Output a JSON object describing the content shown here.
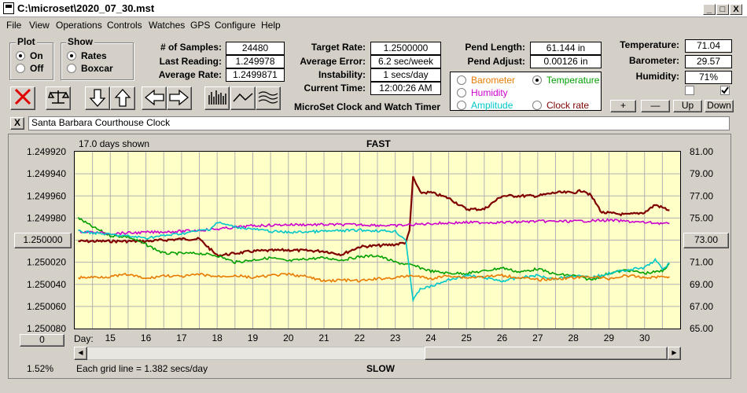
{
  "window": {
    "title": "C:\\microset\\2020_07_30.mst",
    "controls": {
      "minimize": "_",
      "maximize": "□",
      "close": "X"
    }
  },
  "menu": [
    "File",
    "View",
    "Operations",
    "Controls",
    "Watches",
    "GPS",
    "Configure",
    "Help"
  ],
  "plot_group": {
    "title": "Plot",
    "on": "On",
    "off": "Off",
    "selected": "On"
  },
  "show_group": {
    "title": "Show",
    "rates": "Rates",
    "boxcar": "Boxcar",
    "selected": "Rates"
  },
  "stats": {
    "samples_label": "# of Samples:",
    "samples": "24480",
    "last_label": "Last Reading:",
    "last": "1.249978",
    "avg_label": "Average Rate:",
    "avg": "1.2499871",
    "target_label": "Target Rate:",
    "target": "1.2500000",
    "avgerr_label": "Average Error:",
    "avgerr": "6.2 sec/week",
    "instab_label": "Instability:",
    "instab": "1 secs/day",
    "time_label": "Current Time:",
    "time": "12:00:26 AM",
    "pendlen_label": "Pend Length:",
    "pendlen": "61.144 in",
    "pendadj_label": "Pend Adjust:",
    "pendadj": "0.00126 in",
    "temp_label": "Temperature:",
    "temp": "71.04",
    "baro_label": "Barometer:",
    "baro": "29.57",
    "hum_label": "Humidity:",
    "hum": "71%"
  },
  "app_caption": "MicroSet Clock and Watch Timer",
  "sensor_select": {
    "barometer": "Barometer",
    "temperature": "Temperature",
    "humidity": "Humidity",
    "amplitude": "Amplitude",
    "clock_rate": "Clock rate",
    "selected": "Temperature",
    "colors": {
      "barometer": "#e87a00",
      "temperature": "#00a000",
      "humidity": "#cc00cc",
      "amplitude": "#00c8c8",
      "clock_rate": "#800000"
    }
  },
  "scale_buttons": {
    "plus": "+",
    "minus": "—",
    "up": "Up",
    "down": "Down"
  },
  "watch": {
    "close": "X",
    "name": "Santa Barbara Courthouse Clock"
  },
  "chart_header": {
    "days_shown": "17.0 days shown",
    "fast": "FAST",
    "slow": "SLOW"
  },
  "chart_footer": {
    "day_label": "Day:",
    "percent": "1.52%",
    "grid_note": "Each grid line = 1.382 secs/day",
    "left_value": "0"
  },
  "center_button_left": "1.250000",
  "center_button_right": "73.00",
  "chart_data": {
    "type": "line",
    "x_label": "Day:",
    "xlim": [
      14.0,
      31.0
    ],
    "x_ticks": [
      15,
      16,
      17,
      18,
      19,
      20,
      21,
      22,
      23,
      24,
      25,
      26,
      27,
      28,
      29,
      30
    ],
    "y_left_ticks": [
      "1.249920",
      "1.249940",
      "1.249960",
      "1.249980",
      "1.250000",
      "1.250020",
      "1.250040",
      "1.250060",
      "1.250080"
    ],
    "y_left_lim": [
      1.24992,
      1.25008
    ],
    "y_right_ticks": [
      "81.00",
      "79.00",
      "77.00",
      "75.00",
      "73.00",
      "71.00",
      "69.00",
      "67.00",
      "65.00"
    ],
    "y_right_lim": [
      81.0,
      65.0
    ],
    "left_axis_inverted": true,
    "grid": true,
    "series": [
      {
        "name": "Clock rate",
        "color": "#800000",
        "axis": "left",
        "points": [
          [
            14.1,
            1.250001
          ],
          [
            15,
            1.250001
          ],
          [
            16,
            1.250001
          ],
          [
            17,
            1.249999
          ],
          [
            17.5,
            1.249999
          ],
          [
            18,
            1.250014
          ],
          [
            19,
            1.25001
          ],
          [
            20,
            1.250009
          ],
          [
            21,
            1.25001
          ],
          [
            21.5,
            1.250013
          ],
          [
            22,
            1.250006
          ],
          [
            23,
            1.250004
          ],
          [
            23.3,
            1.250002
          ],
          [
            23.4,
            1.249992
          ],
          [
            23.5,
            1.249943
          ],
          [
            23.7,
            1.249957
          ],
          [
            24,
            1.249957
          ],
          [
            24.5,
            1.249962
          ],
          [
            25,
            1.249972
          ],
          [
            25.5,
            1.249972
          ],
          [
            25.7,
            1.249967
          ],
          [
            26,
            1.24996
          ],
          [
            26.5,
            1.24996
          ],
          [
            27,
            1.24996
          ],
          [
            27.5,
            1.249957
          ],
          [
            28,
            1.249957
          ],
          [
            28.3,
            1.249955
          ],
          [
            28.5,
            1.24996
          ],
          [
            28.8,
            1.249975
          ],
          [
            29.5,
            1.249977
          ],
          [
            30,
            1.249975
          ],
          [
            30.3,
            1.249968
          ],
          [
            30.7,
            1.249973
          ]
        ]
      },
      {
        "name": "Temperature",
        "color": "#00a000",
        "axis": "right",
        "points": [
          [
            14.1,
            75.0
          ],
          [
            14.5,
            74.2
          ],
          [
            15,
            73.4
          ],
          [
            15.5,
            73.3
          ],
          [
            16,
            72.6
          ],
          [
            16.5,
            71.8
          ],
          [
            17,
            71.8
          ],
          [
            17.5,
            71.8
          ],
          [
            18,
            71.6
          ],
          [
            18.5,
            71.0
          ],
          [
            19,
            71.2
          ],
          [
            19.5,
            71.4
          ],
          [
            20,
            71.1
          ],
          [
            20.5,
            71.3
          ],
          [
            21,
            71.4
          ],
          [
            21.5,
            71.2
          ],
          [
            22,
            71.5
          ],
          [
            22.5,
            71.6
          ],
          [
            23,
            71.0
          ],
          [
            23.5,
            70.7
          ],
          [
            24,
            70.2
          ],
          [
            24.5,
            70.0
          ],
          [
            25,
            70.0
          ],
          [
            25.5,
            70.2
          ],
          [
            26,
            70.5
          ],
          [
            26.5,
            70.1
          ],
          [
            27,
            70.4
          ],
          [
            27.5,
            69.9
          ],
          [
            28,
            69.8
          ],
          [
            28.5,
            69.4
          ],
          [
            29,
            70.0
          ],
          [
            29.5,
            70.3
          ],
          [
            30,
            70.0
          ],
          [
            30.5,
            70.2
          ],
          [
            30.7,
            70.9
          ]
        ]
      },
      {
        "name": "Humidity",
        "color": "#cc00cc",
        "axis": "right",
        "points": [
          [
            14.1,
            73.8
          ],
          [
            15,
            73.6
          ],
          [
            16,
            73.7
          ],
          [
            17,
            73.8
          ],
          [
            18,
            74.0
          ],
          [
            19,
            74.3
          ],
          [
            20,
            74.4
          ],
          [
            21,
            74.4
          ],
          [
            22,
            74.4
          ],
          [
            23,
            74.3
          ],
          [
            23.5,
            74.4
          ],
          [
            24,
            74.5
          ],
          [
            25,
            74.6
          ],
          [
            26,
            74.6
          ],
          [
            27,
            74.7
          ],
          [
            28,
            74.7
          ],
          [
            29,
            74.8
          ],
          [
            30,
            74.6
          ],
          [
            30.7,
            74.5
          ]
        ]
      },
      {
        "name": "Amplitude",
        "color": "#00c8c8",
        "axis": "right",
        "points": [
          [
            14.1,
            73.8
          ],
          [
            15,
            73.5
          ],
          [
            16,
            73.2
          ],
          [
            17,
            73.6
          ],
          [
            17.8,
            74.0
          ],
          [
            18,
            74.6
          ],
          [
            18.5,
            74.2
          ],
          [
            19,
            74.0
          ],
          [
            19.5,
            73.8
          ],
          [
            20,
            73.7
          ],
          [
            21,
            73.8
          ],
          [
            22,
            73.9
          ],
          [
            23,
            73.8
          ],
          [
            23.3,
            73.0
          ],
          [
            23.5,
            67.5
          ],
          [
            23.7,
            68.6
          ],
          [
            24,
            68.8
          ],
          [
            24.5,
            69.4
          ],
          [
            25,
            69.8
          ],
          [
            25.5,
            69.6
          ],
          [
            26,
            69.3
          ],
          [
            26.5,
            69.6
          ],
          [
            27,
            69.8
          ],
          [
            27.5,
            69.5
          ],
          [
            28,
            69.8
          ],
          [
            28.5,
            69.6
          ],
          [
            29,
            70.0
          ],
          [
            29.5,
            70.3
          ],
          [
            30,
            70.5
          ],
          [
            30.3,
            71.2
          ],
          [
            30.5,
            70.4
          ],
          [
            30.7,
            70.9
          ]
        ]
      },
      {
        "name": "Barometer",
        "color": "#e87a00",
        "axis": "right",
        "points": [
          [
            14.1,
            69.6
          ],
          [
            15,
            69.7
          ],
          [
            15.5,
            69.9
          ],
          [
            16,
            69.5
          ],
          [
            16.5,
            69.8
          ],
          [
            17,
            69.7
          ],
          [
            17.5,
            69.9
          ],
          [
            18,
            69.7
          ],
          [
            18.5,
            69.8
          ],
          [
            19,
            69.6
          ],
          [
            19.5,
            69.8
          ],
          [
            20,
            69.9
          ],
          [
            20.5,
            69.7
          ],
          [
            21,
            69.3
          ],
          [
            21.5,
            69.4
          ],
          [
            22,
            69.3
          ],
          [
            22.5,
            69.5
          ],
          [
            23,
            69.6
          ],
          [
            23.5,
            69.8
          ],
          [
            24,
            69.5
          ],
          [
            24.5,
            69.8
          ],
          [
            25,
            69.6
          ],
          [
            25.5,
            69.7
          ],
          [
            26,
            69.8
          ],
          [
            26.5,
            69.6
          ],
          [
            27,
            69.4
          ],
          [
            27.5,
            69.5
          ],
          [
            28,
            69.6
          ],
          [
            28.5,
            69.7
          ],
          [
            29,
            69.5
          ],
          [
            29.5,
            69.8
          ],
          [
            30,
            69.6
          ],
          [
            30.5,
            69.7
          ],
          [
            30.7,
            69.7
          ]
        ]
      }
    ]
  }
}
